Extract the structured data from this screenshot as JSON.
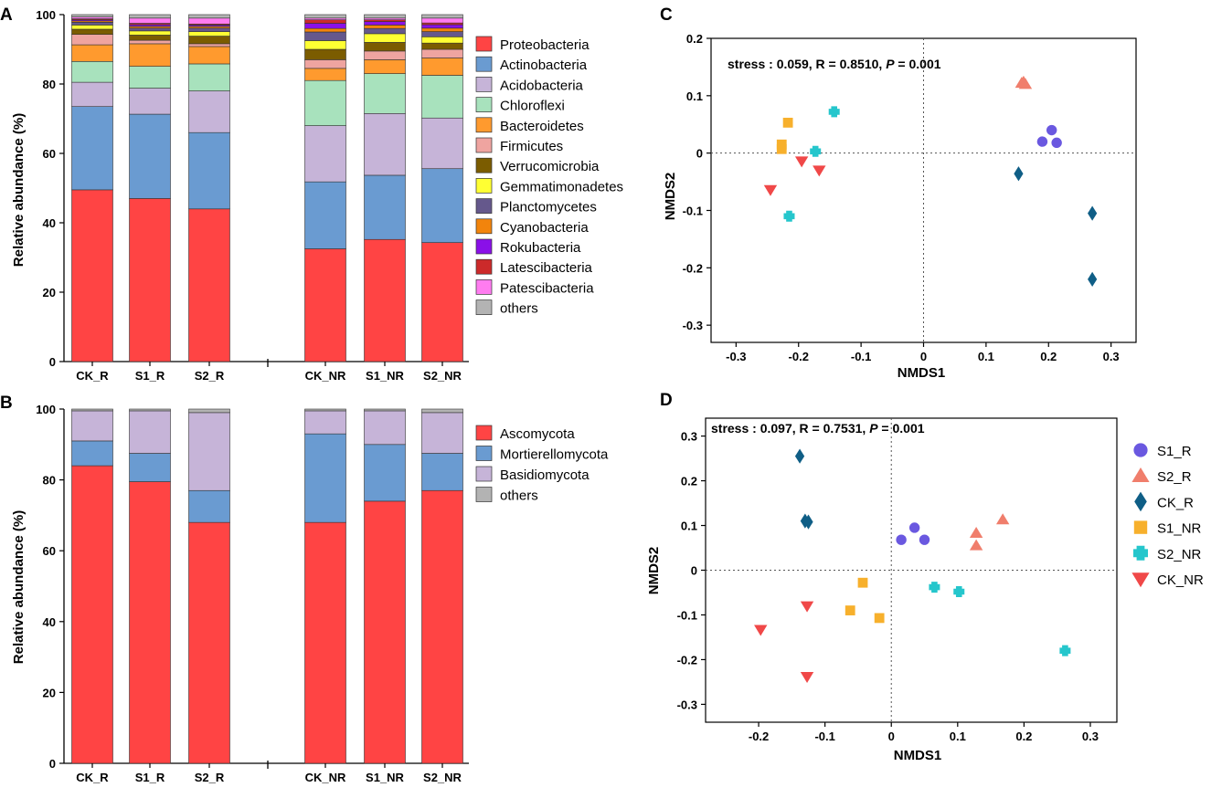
{
  "chart_data": [
    {
      "panel": "A",
      "type": "bar",
      "stacked": true,
      "ylabel": "Relative abundance (%)",
      "ylim": [
        0,
        100
      ],
      "yticks": [
        0,
        20,
        40,
        60,
        80,
        100
      ],
      "categories": [
        "CK_R",
        "S1_R",
        "S2_R",
        "CK_NR",
        "S1_NR",
        "S2_NR"
      ],
      "series": [
        {
          "name": "Proteobacteria",
          "color": "#ff4444",
          "values": [
            49.5,
            47,
            44,
            32.5,
            35.2,
            34.3
          ]
        },
        {
          "name": "Actinobacteria",
          "color": "#6a9bd1",
          "values": [
            24,
            24.3,
            22,
            19.3,
            18.5,
            21.3
          ]
        },
        {
          "name": "Acidobacteria",
          "color": "#c6b4d8",
          "values": [
            7,
            7.5,
            12,
            16.2,
            17.8,
            14.6
          ]
        },
        {
          "name": "Chloroflexi",
          "color": "#a8e2bd",
          "values": [
            6,
            6.3,
            7.8,
            13,
            11.5,
            12.3
          ]
        },
        {
          "name": "Bacteroidetes",
          "color": "#ff9a2e",
          "values": [
            4.8,
            6.5,
            5,
            3.5,
            4,
            5
          ]
        },
        {
          "name": "Firmicutes",
          "color": "#efa4a0",
          "values": [
            3,
            1,
            0.8,
            2.5,
            2.5,
            2.5
          ]
        },
        {
          "name": "Verrucomicrobia",
          "color": "#7b5c00",
          "values": [
            1.5,
            1.5,
            2.2,
            3,
            2.5,
            1.8
          ]
        },
        {
          "name": "Gemmatimonadetes",
          "color": "#ffff33",
          "values": [
            1.2,
            1.2,
            1.3,
            2.5,
            2.5,
            1.8
          ]
        },
        {
          "name": "Planctomycetes",
          "color": "#65588c",
          "values": [
            0.8,
            0.8,
            1,
            2.5,
            1.5,
            1.5
          ]
        },
        {
          "name": "Cyanobacteria",
          "color": "#f2840c",
          "values": [
            0.4,
            0.5,
            0.5,
            1,
            1,
            1
          ]
        },
        {
          "name": "Rokubacteria",
          "color": "#8a10e8",
          "values": [
            0.3,
            0.5,
            0.4,
            1.5,
            1,
            1
          ]
        },
        {
          "name": "Latescibacteria",
          "color": "#cc2a2a",
          "values": [
            0.3,
            0.4,
            0.3,
            1,
            0.5,
            0.5
          ]
        },
        {
          "name": "Patescibacteria",
          "color": "#ff7cf0",
          "values": [
            0.5,
            1.5,
            1.7,
            0.5,
            0.5,
            1.4
          ]
        },
        {
          "name": "others",
          "color": "#b3b3b3",
          "values": [
            0.7,
            1,
            1,
            1,
            1,
            1
          ]
        }
      ]
    },
    {
      "panel": "B",
      "type": "bar",
      "stacked": true,
      "ylabel": "Relative abundance (%)",
      "ylim": [
        0,
        100
      ],
      "yticks": [
        0,
        20,
        40,
        60,
        80,
        100
      ],
      "categories": [
        "CK_R",
        "S1_R",
        "S2_R",
        "CK_NR",
        "S1_NR",
        "S2_NR"
      ],
      "series": [
        {
          "name": "Ascomycota",
          "color": "#ff4444",
          "values": [
            84,
            79.5,
            68,
            68,
            74,
            77
          ]
        },
        {
          "name": "Mortierellomycota",
          "color": "#6a9bd1",
          "values": [
            7,
            8,
            9,
            25,
            16,
            10.5
          ]
        },
        {
          "name": "Basidiomycota",
          "color": "#c6b4d8",
          "values": [
            8.5,
            12,
            22,
            6.5,
            9.5,
            11.5
          ]
        },
        {
          "name": "others",
          "color": "#b3b3b3",
          "values": [
            0.5,
            0.5,
            1,
            0.5,
            0.5,
            1
          ]
        }
      ]
    },
    {
      "panel": "C",
      "type": "scatter",
      "xlabel": "NMDS1",
      "ylabel": "NMDS2",
      "xlim": [
        -0.34,
        0.34
      ],
      "ylim": [
        -0.33,
        0.2
      ],
      "xticks": [
        -0.3,
        -0.2,
        -0.1,
        0,
        0.1,
        0.2,
        0.3
      ],
      "yticks": [
        -0.3,
        -0.2,
        -0.1,
        0,
        0.1,
        0.2
      ],
      "annotation": {
        "prefix": "stress : 0.059, R = 0.8510, ",
        "p_label": "P",
        "p_value": " = 0.001"
      },
      "series": [
        {
          "name": "S1_R",
          "marker": "circle",
          "color": "#6a58e0",
          "points": [
            [
              0.19,
              0.02
            ],
            [
              0.205,
              0.04
            ],
            [
              0.213,
              0.018
            ]
          ]
        },
        {
          "name": "S2_R",
          "marker": "triangle-up",
          "color": "#f07e6c",
          "points": [
            [
              0.157,
              0.122
            ],
            [
              0.163,
              0.12
            ],
            [
              0.16,
              0.124
            ]
          ]
        },
        {
          "name": "CK_R",
          "marker": "diamond",
          "color": "#0f5e86",
          "points": [
            [
              0.152,
              -0.036
            ],
            [
              0.27,
              -0.105
            ],
            [
              0.27,
              -0.22
            ]
          ]
        },
        {
          "name": "S1_NR",
          "marker": "square",
          "color": "#f7b02c",
          "points": [
            [
              -0.217,
              0.053
            ],
            [
              -0.227,
              0.015
            ],
            [
              -0.227,
              0.007
            ]
          ]
        },
        {
          "name": "S2_NR",
          "marker": "plus",
          "color": "#25c6cc",
          "points": [
            [
              -0.143,
              0.072
            ],
            [
              -0.173,
              0.003
            ],
            [
              -0.215,
              -0.11
            ]
          ]
        },
        {
          "name": "CK_NR",
          "marker": "triangle-down",
          "color": "#f04848",
          "points": [
            [
              -0.245,
              -0.064
            ],
            [
              -0.195,
              -0.014
            ],
            [
              -0.167,
              -0.03
            ]
          ]
        }
      ]
    },
    {
      "panel": "D",
      "type": "scatter",
      "xlabel": "NMDS1",
      "ylabel": "NMDS2",
      "xlim": [
        -0.28,
        0.34
      ],
      "ylim": [
        -0.34,
        0.34
      ],
      "xticks": [
        -0.2,
        -0.1,
        0,
        0.1,
        0.2,
        0.3
      ],
      "yticks": [
        -0.3,
        -0.2,
        -0.1,
        0,
        0.1,
        0.2,
        0.3
      ],
      "annotation": {
        "prefix": "stress : 0.097, R = 0.7531, ",
        "p_label": "P",
        "p_value": " = 0.001"
      },
      "legend": "right",
      "series": [
        {
          "name": "S1_R",
          "marker": "circle",
          "color": "#6a58e0",
          "points": [
            [
              0.015,
              0.068
            ],
            [
              0.035,
              0.095
            ],
            [
              0.05,
              0.068
            ]
          ]
        },
        {
          "name": "S2_R",
          "marker": "triangle-up",
          "color": "#f07e6c",
          "points": [
            [
              0.128,
              0.083
            ],
            [
              0.128,
              0.055
            ],
            [
              0.168,
              0.113
            ]
          ]
        },
        {
          "name": "CK_R",
          "marker": "diamond",
          "color": "#0f5e86",
          "points": [
            [
              -0.138,
              0.255
            ],
            [
              -0.13,
              0.11
            ],
            [
              -0.125,
              0.108
            ]
          ]
        },
        {
          "name": "S1_NR",
          "marker": "square",
          "color": "#f7b02c",
          "points": [
            [
              -0.043,
              -0.028
            ],
            [
              -0.062,
              -0.09
            ],
            [
              -0.018,
              -0.107
            ]
          ]
        },
        {
          "name": "S2_NR",
          "marker": "plus",
          "color": "#25c6cc",
          "points": [
            [
              0.065,
              -0.038
            ],
            [
              0.102,
              -0.048
            ],
            [
              0.262,
              -0.18
            ]
          ]
        },
        {
          "name": "CK_NR",
          "marker": "triangle-down",
          "color": "#f04848",
          "points": [
            [
              -0.127,
              -0.08
            ],
            [
              -0.197,
              -0.133
            ],
            [
              -0.127,
              -0.238
            ]
          ]
        }
      ]
    }
  ]
}
